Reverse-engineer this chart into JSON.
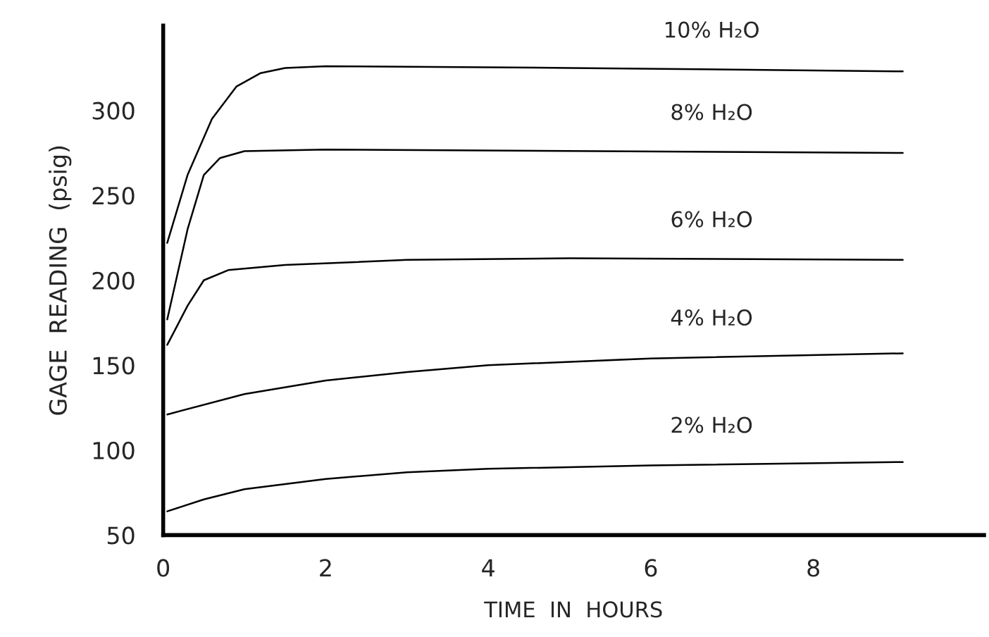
{
  "chart_data": {
    "type": "line",
    "xlabel": "TIME  IN  HOURS",
    "ylabel": "GAGE  READING  (psig)",
    "xlim": [
      0,
      10.1
    ],
    "xticks": [
      0,
      2,
      4,
      6,
      8
    ],
    "ylim": [
      50,
      350
    ],
    "yticks": [
      50,
      100,
      150,
      200,
      250,
      300
    ],
    "grid": false,
    "legend": false,
    "marker": "none",
    "line_style": "solid",
    "series": [
      {
        "name": "10% H₂O",
        "color": "#000000",
        "x": [
          0.05,
          0.3,
          0.6,
          0.9,
          1.2,
          1.5,
          2,
          5,
          9.1
        ],
        "values": [
          222,
          262,
          295,
          314,
          322,
          325,
          326,
          325,
          323
        ]
      },
      {
        "name": "8% H₂O",
        "color": "#000000",
        "x": [
          0.05,
          0.3,
          0.5,
          0.7,
          1,
          2,
          9.1
        ],
        "values": [
          177,
          230,
          262,
          272,
          276,
          277,
          275
        ]
      },
      {
        "name": "6% H₂O",
        "color": "#000000",
        "x": [
          0.05,
          0.3,
          0.5,
          0.8,
          1.5,
          3,
          5,
          9.1
        ],
        "values": [
          162,
          185,
          200,
          206,
          209,
          212,
          213,
          212
        ]
      },
      {
        "name": "4% H₂O",
        "color": "#000000",
        "x": [
          0.05,
          1,
          2,
          3,
          4,
          6,
          9.1
        ],
        "values": [
          121,
          133,
          141,
          146,
          150,
          154,
          157
        ]
      },
      {
        "name": "2% H₂O",
        "color": "#000000",
        "x": [
          0.05,
          0.5,
          1,
          2,
          3,
          4,
          6,
          9.1
        ],
        "values": [
          64,
          71,
          77,
          83,
          87,
          89,
          91,
          93
        ]
      }
    ]
  }
}
